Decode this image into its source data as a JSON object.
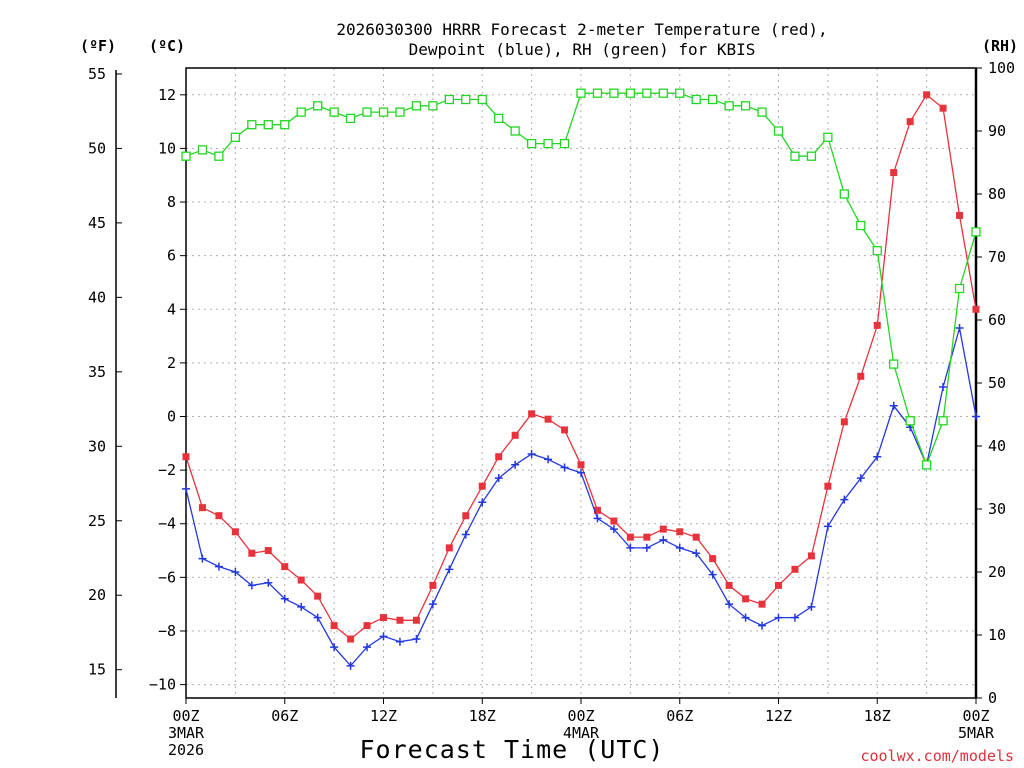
{
  "chart_data": {
    "type": "line",
    "title_line1": "2026030300 HRRR Forecast 2-meter Temperature (red),",
    "title_line2": "Dewpoint (blue), RH (green) for KBIS",
    "xlabel": "Forecast Time (UTC)",
    "credit": "coolwx.com/models",
    "units": {
      "fahrenheit": "(ºF)",
      "celsius": "(ºC)",
      "rh": "(RH)"
    },
    "x_range": [
      0,
      48
    ],
    "x_ticks": [
      {
        "x": 0,
        "label": "00Z",
        "sub1": "3MAR",
        "sub2": "2026"
      },
      {
        "x": 6,
        "label": "06Z"
      },
      {
        "x": 12,
        "label": "12Z"
      },
      {
        "x": 18,
        "label": "18Z"
      },
      {
        "x": 24,
        "label": "00Z",
        "sub1": "4MAR"
      },
      {
        "x": 30,
        "label": "06Z"
      },
      {
        "x": 36,
        "label": "12Z"
      },
      {
        "x": 42,
        "label": "18Z"
      },
      {
        "x": 48,
        "label": "00Z",
        "sub1": "5MAR"
      }
    ],
    "celsius_axis": {
      "range": [
        -10.5,
        13
      ],
      "ticks": [
        -10,
        -8,
        -6,
        -4,
        -2,
        0,
        2,
        4,
        6,
        8,
        10,
        12
      ]
    },
    "fahrenheit_axis": {
      "ticks": [
        15,
        20,
        25,
        30,
        35,
        40,
        45,
        50,
        55
      ]
    },
    "rh_axis": {
      "range": [
        0,
        100
      ],
      "ticks": [
        0,
        10,
        20,
        30,
        40,
        50,
        60,
        70,
        80,
        90,
        100
      ]
    },
    "grid": true,
    "series": [
      {
        "name": "Temperature",
        "unit": "C",
        "color": "#e8333c",
        "marker": "filled-square",
        "values": [
          -1.5,
          -3.4,
          -3.7,
          -4.3,
          -5.1,
          -5.0,
          -5.6,
          -6.1,
          -6.7,
          -7.8,
          -8.3,
          -7.8,
          -7.5,
          -7.6,
          -7.6,
          -6.3,
          -4.9,
          -3.7,
          -2.6,
          -1.5,
          -0.7,
          0.1,
          -0.1,
          -0.5,
          -1.8,
          -3.5,
          -3.9,
          -4.5,
          -4.5,
          -4.2,
          -4.3,
          -4.5,
          -5.3,
          -6.3,
          -6.8,
          -7.0,
          -6.3,
          -5.7,
          -5.2,
          -2.6,
          -0.2,
          1.5,
          3.4,
          9.1,
          11.0,
          12.0,
          11.5,
          7.5,
          4.0
        ]
      },
      {
        "name": "Dewpoint",
        "unit": "C",
        "color": "#2338e0",
        "marker": "plus",
        "values": [
          -2.7,
          -5.3,
          -5.6,
          -5.8,
          -6.3,
          -6.2,
          -6.8,
          -7.1,
          -7.5,
          -8.6,
          -9.3,
          -8.6,
          -8.2,
          -8.4,
          -8.3,
          -7.0,
          -5.7,
          -4.4,
          -3.2,
          -2.3,
          -1.8,
          -1.4,
          -1.6,
          -1.9,
          -2.1,
          -3.8,
          -4.2,
          -4.9,
          -4.9,
          -4.6,
          -4.9,
          -5.1,
          -5.9,
          -7.0,
          -7.5,
          -7.8,
          -7.5,
          -7.5,
          -7.1,
          -4.1,
          -3.1,
          -2.3,
          -1.5,
          0.4,
          -0.4,
          -1.8,
          1.1,
          3.3,
          0.0
        ]
      },
      {
        "name": "RH",
        "unit": "%",
        "color": "#22d622",
        "marker": "open-square",
        "values": [
          86,
          87,
          86,
          89,
          91,
          91,
          91,
          93,
          94,
          93,
          92,
          93,
          93,
          93,
          94,
          94,
          95,
          95,
          95,
          92,
          90,
          88,
          88,
          88,
          96,
          96,
          96,
          96,
          96,
          96,
          96,
          95,
          95,
          94,
          94,
          93,
          90,
          86,
          86,
          89,
          80,
          75,
          71,
          53,
          44,
          37,
          44,
          65,
          74
        ]
      }
    ]
  }
}
